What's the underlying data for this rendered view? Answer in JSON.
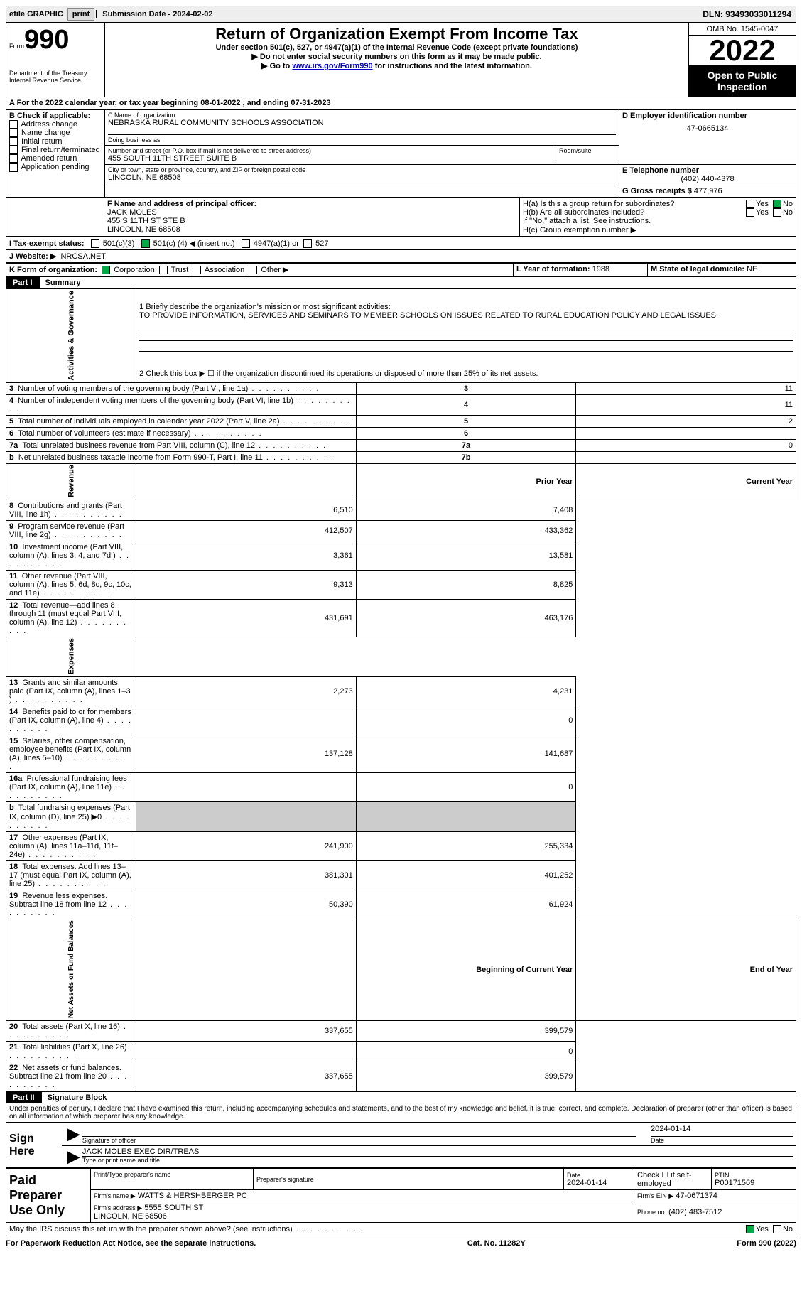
{
  "topbar": {
    "efile_label": "efile GRAPHIC",
    "print_btn": "print",
    "submission_label": "Submission Date - 2024-02-02",
    "dln_label": "DLN: 93493033011294"
  },
  "header": {
    "form_word": "Form",
    "form_number": "990",
    "dept": "Department of the Treasury\nInternal Revenue Service",
    "title": "Return of Organization Exempt From Income Tax",
    "subtitle1": "Under section 501(c), 527, or 4947(a)(1) of the Internal Revenue Code (except private foundations)",
    "subtitle2": "▶ Do not enter social security numbers on this form as it may be made public.",
    "subtitle3_prefix": "▶ Go to ",
    "subtitle3_link": "www.irs.gov/Form990",
    "subtitle3_suffix": " for instructions and the latest information.",
    "omb": "OMB No. 1545-0047",
    "year": "2022",
    "open_public": "Open to Public Inspection"
  },
  "period": {
    "label_a": "A For the 2022 calendar year, or tax year beginning ",
    "begin": "08-01-2022",
    "label_mid": "   , and ending ",
    "end": "07-31-2023"
  },
  "boxB": {
    "header": "B Check if applicable:",
    "items": [
      "Address change",
      "Name change",
      "Initial return",
      "Final return/terminated",
      "Amended return",
      "Application pending"
    ]
  },
  "boxC": {
    "label": "C Name of organization",
    "name": "NEBRASKA RURAL COMMUNITY SCHOOLS ASSOCIATION",
    "dba_label": "Doing business as",
    "addr_label": "Number and street (or P.O. box if mail is not delivered to street address)",
    "room_label": "Room/suite",
    "addr": "455 SOUTH 11TH STREET SUITE B",
    "city_label": "City or town, state or province, country, and ZIP or foreign postal code",
    "city": "LINCOLN, NE  68508"
  },
  "boxD": {
    "label": "D Employer identification number",
    "value": "47-0665134"
  },
  "boxE": {
    "label": "E Telephone number",
    "value": "(402) 440-4378"
  },
  "boxG": {
    "label": "G Gross receipts $",
    "value": "477,976"
  },
  "boxF": {
    "label": "F  Name and address of principal officer:",
    "name": "JACK MOLES",
    "addr1": "455 S 11TH ST STE B",
    "addr2": "LINCOLN, NE  68508"
  },
  "boxH": {
    "ha_label": "H(a)  Is this a group return for subordinates?",
    "hb_label": "H(b)  Are all subordinates included?",
    "hb_note": "If \"No,\" attach a list. See instructions.",
    "hc_label": "H(c)  Group exemption number ▶",
    "yes": "Yes",
    "no": "No"
  },
  "boxI": {
    "label": "I  Tax-exempt status:",
    "opt1": "501(c)(3)",
    "opt2_pre": "501(c) (",
    "opt2_num": "4",
    "opt2_post": ") ◀ (insert no.)",
    "opt3": "4947(a)(1) or",
    "opt4": "527"
  },
  "boxJ": {
    "label": "J   Website: ▶",
    "value": "NRCSA.NET"
  },
  "boxK": {
    "label": "K Form of organization:",
    "opts": [
      "Corporation",
      "Trust",
      "Association",
      "Other ▶"
    ]
  },
  "boxL": {
    "label": "L Year of formation:",
    "value": "1988"
  },
  "boxM": {
    "label": "M State of legal domicile:",
    "value": "NE"
  },
  "part1": {
    "label": "Part I",
    "title": "Summary",
    "q1_label": "1   Briefly describe the organization's mission or most significant activities:",
    "q1_text": "TO PROVIDE INFORMATION, SERVICES AND SEMINARS TO MEMBER SCHOOLS ON ISSUES RELATED TO RURAL EDUCATION POLICY AND LEGAL ISSUES.",
    "q2": "2   Check this box ▶ ☐ if the organization discontinued its operations or disposed of more than 25% of its net assets.",
    "rows_top": [
      {
        "n": "3",
        "label": "Number of voting members of the governing body (Part VI, line 1a)",
        "box": "3",
        "val": "11"
      },
      {
        "n": "4",
        "label": "Number of independent voting members of the governing body (Part VI, line 1b)",
        "box": "4",
        "val": "11"
      },
      {
        "n": "5",
        "label": "Total number of individuals employed in calendar year 2022 (Part V, line 2a)",
        "box": "5",
        "val": "2"
      },
      {
        "n": "6",
        "label": "Total number of volunteers (estimate if necessary)",
        "box": "6",
        "val": ""
      },
      {
        "n": "7a",
        "label": "Total unrelated business revenue from Part VIII, column (C), line 12",
        "box": "7a",
        "val": "0"
      },
      {
        "n": "b",
        "label": "Net unrelated business taxable income from Form 990-T, Part I, line 11",
        "box": "7b",
        "val": ""
      }
    ],
    "col_prior": "Prior Year",
    "col_current": "Current Year",
    "revenue_rows": [
      {
        "n": "8",
        "label": "Contributions and grants (Part VIII, line 1h)",
        "py": "6,510",
        "cy": "7,408"
      },
      {
        "n": "9",
        "label": "Program service revenue (Part VIII, line 2g)",
        "py": "412,507",
        "cy": "433,362"
      },
      {
        "n": "10",
        "label": "Investment income (Part VIII, column (A), lines 3, 4, and 7d )",
        "py": "3,361",
        "cy": "13,581"
      },
      {
        "n": "11",
        "label": "Other revenue (Part VIII, column (A), lines 5, 6d, 8c, 9c, 10c, and 11e)",
        "py": "9,313",
        "cy": "8,825"
      },
      {
        "n": "12",
        "label": "Total revenue—add lines 8 through 11 (must equal Part VIII, column (A), line 12)",
        "py": "431,691",
        "cy": "463,176"
      }
    ],
    "expense_rows": [
      {
        "n": "13",
        "label": "Grants and similar amounts paid (Part IX, column (A), lines 1–3 )",
        "py": "2,273",
        "cy": "4,231"
      },
      {
        "n": "14",
        "label": "Benefits paid to or for members (Part IX, column (A), line 4)",
        "py": "",
        "cy": "0"
      },
      {
        "n": "15",
        "label": "Salaries, other compensation, employee benefits (Part IX, column (A), lines 5–10)",
        "py": "137,128",
        "cy": "141,687"
      },
      {
        "n": "16a",
        "label": "Professional fundraising fees (Part IX, column (A), line 11e)",
        "py": "",
        "cy": "0"
      },
      {
        "n": "b",
        "label": "Total fundraising expenses (Part IX, column (D), line 25) ▶0",
        "py": "SHADE",
        "cy": "SHADE"
      },
      {
        "n": "17",
        "label": "Other expenses (Part IX, column (A), lines 11a–11d, 11f–24e)",
        "py": "241,900",
        "cy": "255,334"
      },
      {
        "n": "18",
        "label": "Total expenses. Add lines 13–17 (must equal Part IX, column (A), line 25)",
        "py": "381,301",
        "cy": "401,252"
      },
      {
        "n": "19",
        "label": "Revenue less expenses. Subtract line 18 from line 12",
        "py": "50,390",
        "cy": "61,924"
      }
    ],
    "col_begin": "Beginning of Current Year",
    "col_end": "End of Year",
    "net_rows": [
      {
        "n": "20",
        "label": "Total assets (Part X, line 16)",
        "py": "337,655",
        "cy": "399,579"
      },
      {
        "n": "21",
        "label": "Total liabilities (Part X, line 26)",
        "py": "",
        "cy": "0"
      },
      {
        "n": "22",
        "label": "Net assets or fund balances. Subtract line 21 from line 20",
        "py": "337,655",
        "cy": "399,579"
      }
    ],
    "side_activities": "Activities & Governance",
    "side_revenue": "Revenue",
    "side_expenses": "Expenses",
    "side_net": "Net Assets or Fund Balances"
  },
  "part2": {
    "label": "Part II",
    "title": "Signature Block",
    "declaration": "Under penalties of perjury, I declare that I have examined this return, including accompanying schedules and statements, and to the best of my knowledge and belief, it is true, correct, and complete. Declaration of preparer (other than officer) is based on all information of which preparer has any knowledge.",
    "sign_here": "Sign Here",
    "sig_officer": "Signature of officer",
    "sig_date": "2024-01-14",
    "date_label": "Date",
    "officer_name": "JACK MOLES  EXEC DIR/TREAS",
    "type_name_label": "Type or print name and title",
    "paid_preparer": "Paid Preparer Use Only",
    "prep_name_label": "Print/Type preparer's name",
    "prep_sig_label": "Preparer's signature",
    "prep_date_label": "Date",
    "prep_date": "2024-01-14",
    "check_if": "Check ☐ if self-employed",
    "ptin_label": "PTIN",
    "ptin": "P00171569",
    "firm_name_label": "Firm's name      ▶",
    "firm_name": "WATTS & HERSHBERGER PC",
    "firm_ein_label": "Firm's EIN ▶",
    "firm_ein": "47-0671374",
    "firm_addr_label": "Firm's address ▶",
    "firm_addr": "5555 SOUTH ST\nLINCOLN, NE  68506",
    "phone_label": "Phone no.",
    "phone": "(402) 483-7512",
    "may_irs": "May the IRS discuss this return with the preparer shown above? (see instructions)",
    "yes": "Yes",
    "no": "No"
  },
  "footer": {
    "left": "For Paperwork Reduction Act Notice, see the separate instructions.",
    "mid": "Cat. No. 11282Y",
    "right": "Form 990 (2022)"
  }
}
